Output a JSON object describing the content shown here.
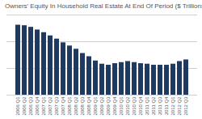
{
  "chart_data": {
    "type": "bar",
    "title": "Owners' Equity In Household Real Estate At End Of Period ($ Trillions)",
    "categories": [
      "2006 Q1",
      "2006 Q2",
      "2006 Q3",
      "2006 Q4",
      "2007 Q1",
      "2007 Q2",
      "2007 Q3",
      "2007 Q4",
      "2008 Q1",
      "2008 Q2",
      "2008 Q3",
      "2008 Q4",
      "2009 Q1",
      "2009 Q2",
      "2009 Q3",
      "2009 Q4",
      "2010 Q1",
      "2010 Q2",
      "2010 Q3",
      "2010 Q4",
      "2011 Q1",
      "2011 Q2",
      "2011 Q3",
      "2011 Q4",
      "2012 Q1",
      "2012 Q2",
      "2012 Q3"
    ],
    "values": [
      13.1,
      13.0,
      12.7,
      12.2,
      11.7,
      11.1,
      10.5,
      9.8,
      9.2,
      8.6,
      7.8,
      7.2,
      6.4,
      5.8,
      5.6,
      5.9,
      6.1,
      6.3,
      6.1,
      5.9,
      5.8,
      5.6,
      5.6,
      5.6,
      5.8,
      6.3,
      6.6
    ],
    "color": "#1f3a60",
    "ylim": [
      0,
      15
    ],
    "yticks": [
      0,
      5,
      10,
      15
    ],
    "grid": true,
    "tick_labels": "x"
  }
}
